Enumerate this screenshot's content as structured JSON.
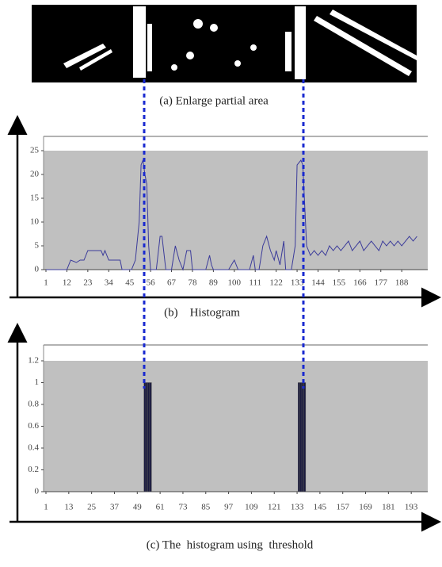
{
  "image_caption": "(a) Enlarge partial area",
  "chart_data": [
    {
      "type": "line",
      "caption": "(b)    Histogram",
      "color": "#3b3b9a",
      "x": [
        1,
        10,
        12,
        14,
        17,
        19,
        21,
        23,
        27,
        30,
        31,
        32,
        33,
        34,
        38,
        40,
        41,
        44,
        46,
        48,
        50,
        51,
        52,
        53,
        54,
        55,
        56,
        59,
        61,
        62,
        64,
        67,
        69,
        71,
        73,
        75,
        77,
        78,
        80,
        85,
        87,
        88,
        89,
        97,
        100,
        102,
        108,
        110,
        111,
        113,
        115,
        117,
        119,
        121,
        122,
        124,
        126,
        127,
        130,
        132,
        133,
        135,
        136,
        138,
        140,
        142,
        144,
        146,
        148,
        150,
        152,
        154,
        156,
        158,
        160,
        162,
        164,
        166,
        168,
        170,
        172,
        174,
        176,
        178,
        180,
        182,
        184,
        186,
        188,
        190,
        192,
        194,
        196
      ],
      "values": [
        0,
        0,
        0,
        2,
        1.5,
        2,
        2,
        4,
        4,
        4,
        3,
        4,
        3,
        2,
        2,
        2,
        0,
        0,
        0,
        2,
        10,
        22,
        23,
        20,
        18,
        5,
        0,
        0,
        7,
        7,
        0,
        0,
        5,
        2,
        0,
        4,
        4,
        0,
        0,
        0,
        3,
        1,
        0,
        0,
        2,
        0,
        0,
        3,
        0,
        0,
        5,
        7,
        4,
        2,
        4,
        1,
        6,
        0,
        0,
        5,
        22,
        23,
        22,
        5,
        3,
        4,
        3,
        4,
        3,
        5,
        4,
        5,
        4,
        5,
        6,
        4,
        5,
        6,
        4,
        5,
        6,
        5,
        4,
        6,
        5,
        6,
        5,
        6,
        5,
        6,
        7,
        6,
        7
      ],
      "xlim": [
        1,
        200
      ],
      "ylim": [
        0,
        25
      ],
      "xticks": [
        1,
        12,
        23,
        34,
        45,
        56,
        67,
        78,
        89,
        100,
        111,
        122,
        133,
        144,
        155,
        166,
        177,
        188
      ],
      "yticks": [
        0,
        5,
        10,
        15,
        20,
        25
      ]
    },
    {
      "type": "bar",
      "caption": "(c) The  histogram using  threshold",
      "color": "#1a1a40",
      "x": [
        53,
        54,
        55,
        56,
        134,
        135,
        136,
        137
      ],
      "values": [
        1,
        1,
        1,
        1,
        1,
        1,
        1,
        1
      ],
      "xlim": [
        1,
        200
      ],
      "ylim": [
        0,
        1.2
      ],
      "xticks": [
        1,
        13,
        25,
        37,
        49,
        61,
        73,
        85,
        97,
        109,
        121,
        133,
        145,
        157,
        169,
        181,
        193
      ],
      "yticks": [
        0,
        0.2,
        0.4,
        0.6,
        0.8,
        1,
        1.2
      ]
    }
  ]
}
